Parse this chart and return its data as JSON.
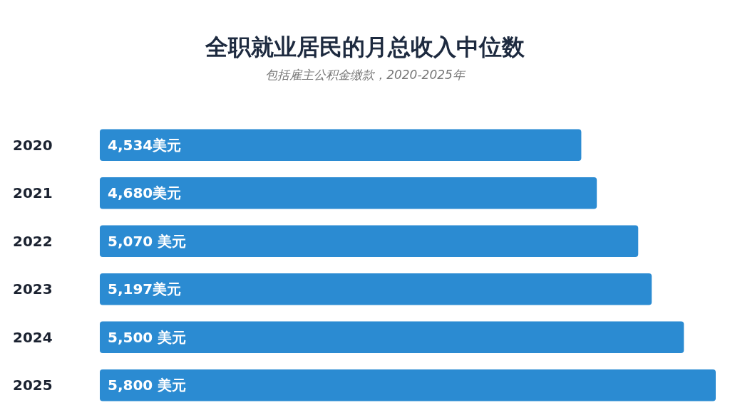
{
  "chart_data": {
    "type": "bar",
    "orientation": "horizontal",
    "title": "全职就业居民的月总收入中位数",
    "subtitle": "包括雇主公积金缴款，2020-2025年",
    "categories": [
      "2020",
      "2021",
      "2022",
      "2023",
      "2024",
      "2025"
    ],
    "values": [
      4534,
      4680,
      5070,
      5197,
      5500,
      5800
    ],
    "value_labels": [
      "4,534美元",
      "4,680美元",
      "5,070 美元",
      "5,197美元",
      "5,500 美元",
      "5,800 美元"
    ],
    "color": "#2b8bd2",
    "xlim": [
      0,
      5800
    ]
  }
}
